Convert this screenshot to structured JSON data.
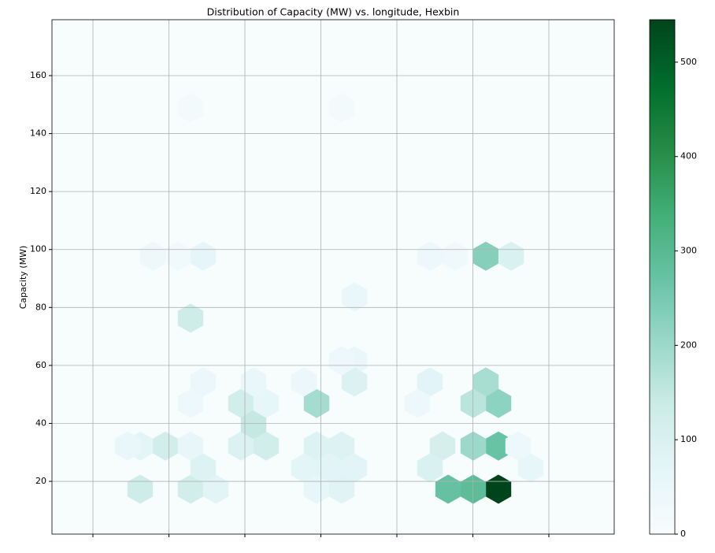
{
  "chart_data": {
    "type": "hexbin",
    "title": "Distribution of Capacity (MW) vs. longitude, Hexbin",
    "y_label": "Capacity (MW)",
    "xlim": [
      -125.39,
      -51.4
    ],
    "xticks": [
      -120,
      -110,
      -100,
      -90,
      -80,
      -70,
      -60
    ],
    "ylim": [
      1.8,
      179.3
    ],
    "yticks": [
      20,
      40,
      60,
      80,
      100,
      120,
      140,
      160
    ],
    "grid": true,
    "colormap": [
      "#f7fcfd",
      "#e5f5f9",
      "#ccece6",
      "#99d8c9",
      "#66c2a4",
      "#41ae76",
      "#238b45",
      "#006d2c",
      "#00441b"
    ],
    "clim": [
      0,
      545
    ],
    "cticks": [
      0,
      100,
      200,
      300,
      400,
      500
    ],
    "x": [
      -66.63,
      -69.95,
      -73.26,
      -68.29,
      -66.63,
      -69.95,
      -66.63,
      -68.29,
      -69.95,
      -90.57,
      -113.78,
      -107.15,
      -103.83,
      -110.47,
      -113.78,
      -107.15,
      -105.49,
      -107.15,
      -105.49,
      -64.97,
      -97.2,
      -100.52,
      -100.52,
      -98.86,
      -97.2,
      -98.86,
      -92.23,
      -85.59,
      -85.59,
      -90.57,
      -87.25,
      -88.91,
      -92.23,
      -85.59,
      -90.57,
      -87.25,
      -75.65,
      -77.3,
      -73.99,
      -75.65,
      -62.38,
      -64.04,
      -85.59,
      -87.25,
      -72.33,
      -75.65,
      -112.12,
      -108.81,
      -105.49,
      -107.15,
      -115.44,
      -87.25,
      -107.15
    ],
    "y": [
      17.3,
      17.3,
      17.3,
      97.7,
      32.2,
      32.2,
      46.9,
      54.3,
      46.9,
      46.9,
      17.3,
      17.3,
      17.3,
      32.2,
      32.2,
      32.2,
      24.6,
      76.3,
      97.7,
      97.7,
      32.2,
      32.2,
      46.9,
      39.6,
      46.9,
      54.3,
      54.3,
      61.6,
      54.3,
      32.2,
      32.2,
      24.6,
      24.6,
      24.6,
      17.3,
      17.3,
      54.3,
      46.9,
      32.2,
      24.6,
      24.6,
      32.2,
      83.6,
      61.6,
      97.7,
      97.7,
      97.7,
      97.7,
      54.3,
      46.9,
      32.2,
      148.9,
      148.9
    ],
    "counts": [
      545,
      290,
      275,
      230,
      270,
      200,
      220,
      185,
      160,
      190,
      130,
      120,
      75,
      120,
      70,
      55,
      90,
      130,
      65,
      100,
      120,
      95,
      120,
      145,
      60,
      50,
      45,
      50,
      95,
      90,
      90,
      75,
      70,
      75,
      60,
      80,
      75,
      40,
      110,
      100,
      60,
      40,
      50,
      40,
      30,
      40,
      35,
      25,
      45,
      40,
      50,
      15,
      20
    ]
  }
}
